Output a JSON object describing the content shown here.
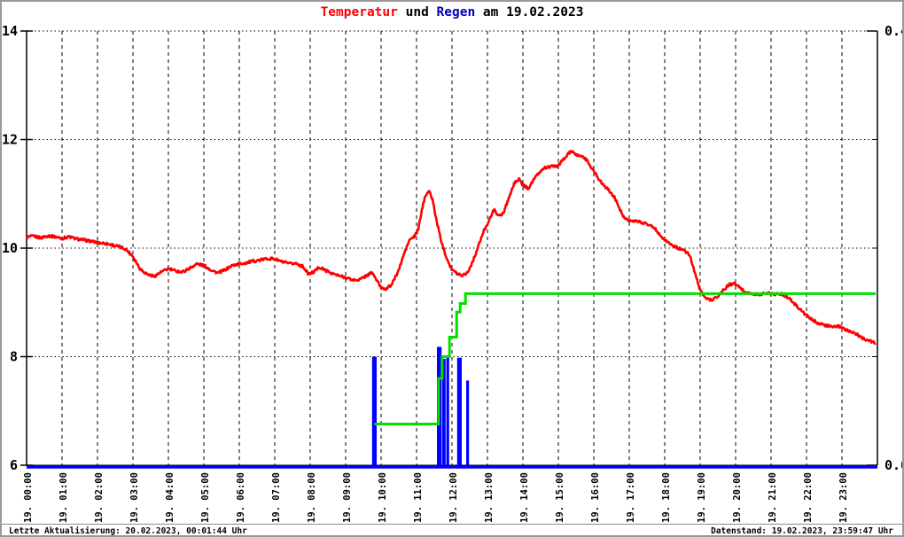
{
  "title": {
    "temperature_label": "Temperatur",
    "conjunction": " und ",
    "rain_label": "Regen",
    "date_suffix": " am 19.02.2023"
  },
  "footer": {
    "last_update": "Letzte Aktualisierung: 20.02.2023, 00:01:44 Uhr",
    "data_state": "Datenstand: 19.02.2023, 23:59:47 Uhr"
  },
  "colors": {
    "temperature_line": "#ff0000",
    "rain_bars": "#0000ff",
    "rain_cumulative_line": "#00e000",
    "axis": "#000000",
    "grid": "#000000",
    "title_temperature": "#ff0000",
    "title_rain": "#0000bb",
    "baseline_blue": "#0000ff"
  },
  "chart_data": {
    "type": "line+bar",
    "title": "Temperatur und Regen am 19.02.2023",
    "grid": true,
    "x_axis": {
      "range": [
        0,
        24
      ],
      "tick_labels": [
        "19. 00:00",
        "19. 01:00",
        "19. 02:00",
        "19. 03:00",
        "19. 04:00",
        "19. 05:00",
        "19. 06:00",
        "19. 07:00",
        "19. 08:00",
        "19. 09:00",
        "19. 10:00",
        "19. 11:00",
        "19. 12:00",
        "19. 13:00",
        "19. 14:00",
        "19. 15:00",
        "19. 16:00",
        "19. 17:00",
        "19. 18:00",
        "19. 19:00",
        "19. 20:00",
        "19. 21:00",
        "19. 22:00",
        "19. 23:00"
      ]
    },
    "y_left_axis": {
      "range": [
        6,
        14
      ],
      "tick_values": [
        14,
        12,
        10,
        8,
        6
      ],
      "tick_labels": [
        "14",
        "12",
        "10",
        "8",
        "6"
      ],
      "series": "Temperatur (rot)"
    },
    "y_right_axis": {
      "range": [
        0.0,
        0.4
      ],
      "labeled_tick_values": [
        0.4,
        0.0
      ],
      "labeled_tick_labels": [
        "0.4",
        "0.0"
      ],
      "minor_tick_values": [
        0.3,
        0.2,
        0.1
      ],
      "series": "Regen (blau/gruen)"
    },
    "temperature_series": {
      "name": "Temperatur",
      "axis": "left",
      "points": [
        [
          0.0,
          10.2
        ],
        [
          0.2,
          10.22
        ],
        [
          0.4,
          10.19
        ],
        [
          0.6,
          10.23
        ],
        [
          0.8,
          10.21
        ],
        [
          1.0,
          10.18
        ],
        [
          1.2,
          10.21
        ],
        [
          1.4,
          10.17
        ],
        [
          1.6,
          10.15
        ],
        [
          1.8,
          10.13
        ],
        [
          2.0,
          10.1
        ],
        [
          2.2,
          10.09
        ],
        [
          2.4,
          10.06
        ],
        [
          2.6,
          10.03
        ],
        [
          2.8,
          9.98
        ],
        [
          3.0,
          9.85
        ],
        [
          3.2,
          9.62
        ],
        [
          3.4,
          9.52
        ],
        [
          3.6,
          9.48
        ],
        [
          3.8,
          9.56
        ],
        [
          4.0,
          9.62
        ],
        [
          4.2,
          9.58
        ],
        [
          4.4,
          9.56
        ],
        [
          4.6,
          9.63
        ],
        [
          4.8,
          9.71
        ],
        [
          5.0,
          9.68
        ],
        [
          5.2,
          9.6
        ],
        [
          5.4,
          9.54
        ],
        [
          5.6,
          9.6
        ],
        [
          5.8,
          9.68
        ],
        [
          6.0,
          9.71
        ],
        [
          6.2,
          9.73
        ],
        [
          6.4,
          9.76
        ],
        [
          6.6,
          9.78
        ],
        [
          6.8,
          9.81
        ],
        [
          7.0,
          9.8
        ],
        [
          7.2,
          9.75
        ],
        [
          7.4,
          9.71
        ],
        [
          7.6,
          9.72
        ],
        [
          7.8,
          9.66
        ],
        [
          7.95,
          9.52
        ],
        [
          8.1,
          9.56
        ],
        [
          8.25,
          9.65
        ],
        [
          8.4,
          9.6
        ],
        [
          8.6,
          9.54
        ],
        [
          8.8,
          9.49
        ],
        [
          9.0,
          9.46
        ],
        [
          9.2,
          9.41
        ],
        [
          9.4,
          9.42
        ],
        [
          9.6,
          9.5
        ],
        [
          9.75,
          9.55
        ],
        [
          9.9,
          9.38
        ],
        [
          10.0,
          9.27
        ],
        [
          10.15,
          9.25
        ],
        [
          10.3,
          9.33
        ],
        [
          10.5,
          9.6
        ],
        [
          10.65,
          9.9
        ],
        [
          10.8,
          10.15
        ],
        [
          10.95,
          10.22
        ],
        [
          11.05,
          10.35
        ],
        [
          11.15,
          10.7
        ],
        [
          11.25,
          10.98
        ],
        [
          11.35,
          11.05
        ],
        [
          11.45,
          10.9
        ],
        [
          11.55,
          10.55
        ],
        [
          11.7,
          10.12
        ],
        [
          11.85,
          9.82
        ],
        [
          12.0,
          9.6
        ],
        [
          12.15,
          9.53
        ],
        [
          12.3,
          9.5
        ],
        [
          12.45,
          9.56
        ],
        [
          12.6,
          9.78
        ],
        [
          12.75,
          10.05
        ],
        [
          12.9,
          10.32
        ],
        [
          13.05,
          10.52
        ],
        [
          13.2,
          10.73
        ],
        [
          13.3,
          10.58
        ],
        [
          13.45,
          10.65
        ],
        [
          13.6,
          10.92
        ],
        [
          13.75,
          11.18
        ],
        [
          13.87,
          11.28
        ],
        [
          14.0,
          11.16
        ],
        [
          14.15,
          11.1
        ],
        [
          14.3,
          11.26
        ],
        [
          14.45,
          11.38
        ],
        [
          14.6,
          11.48
        ],
        [
          14.8,
          11.5
        ],
        [
          15.0,
          11.52
        ],
        [
          15.2,
          11.68
        ],
        [
          15.35,
          11.78
        ],
        [
          15.5,
          11.72
        ],
        [
          15.65,
          11.7
        ],
        [
          15.8,
          11.62
        ],
        [
          16.0,
          11.42
        ],
        [
          16.2,
          11.22
        ],
        [
          16.4,
          11.08
        ],
        [
          16.6,
          10.92
        ],
        [
          16.8,
          10.62
        ],
        [
          16.95,
          10.52
        ],
        [
          17.1,
          10.5
        ],
        [
          17.3,
          10.48
        ],
        [
          17.5,
          10.45
        ],
        [
          17.7,
          10.38
        ],
        [
          17.9,
          10.22
        ],
        [
          18.1,
          10.1
        ],
        [
          18.3,
          10.02
        ],
        [
          18.5,
          9.97
        ],
        [
          18.7,
          9.88
        ],
        [
          18.85,
          9.55
        ],
        [
          19.0,
          9.22
        ],
        [
          19.2,
          9.06
        ],
        [
          19.35,
          9.05
        ],
        [
          19.5,
          9.12
        ],
        [
          19.65,
          9.22
        ],
        [
          19.8,
          9.32
        ],
        [
          19.95,
          9.35
        ],
        [
          20.1,
          9.28
        ],
        [
          20.3,
          9.18
        ],
        [
          20.5,
          9.15
        ],
        [
          20.7,
          9.15
        ],
        [
          20.9,
          9.17
        ],
        [
          21.1,
          9.15
        ],
        [
          21.3,
          9.16
        ],
        [
          21.5,
          9.08
        ],
        [
          21.7,
          8.95
        ],
        [
          21.9,
          8.82
        ],
        [
          22.1,
          8.7
        ],
        [
          22.3,
          8.63
        ],
        [
          22.5,
          8.58
        ],
        [
          22.7,
          8.55
        ],
        [
          22.9,
          8.56
        ],
        [
          23.1,
          8.5
        ],
        [
          23.35,
          8.44
        ],
        [
          23.55,
          8.35
        ],
        [
          23.75,
          8.3
        ],
        [
          23.95,
          8.25
        ]
      ]
    },
    "rain_bars": {
      "name": "Regen",
      "axis": "right",
      "bars": [
        {
          "t": 9.81,
          "w": 0.13,
          "v": 0.1
        },
        {
          "t": 11.64,
          "w": 0.13,
          "v": 0.109
        },
        {
          "t": 11.77,
          "w": 0.1,
          "v": 0.098
        },
        {
          "t": 11.88,
          "w": 0.08,
          "v": 0.1
        },
        {
          "t": 12.21,
          "w": 0.13,
          "v": 0.099
        },
        {
          "t": 12.44,
          "w": 0.08,
          "v": 0.078
        }
      ]
    },
    "rain_cumulative_series": {
      "axis": "right",
      "steps": [
        [
          9.81,
          0.038
        ],
        [
          11.62,
          0.038
        ],
        [
          11.62,
          0.08
        ],
        [
          11.72,
          0.08
        ],
        [
          11.72,
          0.1
        ],
        [
          11.93,
          0.1
        ],
        [
          11.93,
          0.118
        ],
        [
          12.13,
          0.118
        ],
        [
          12.13,
          0.141
        ],
        [
          12.23,
          0.141
        ],
        [
          12.23,
          0.149
        ],
        [
          12.38,
          0.149
        ],
        [
          12.38,
          0.158
        ],
        [
          23.95,
          0.158
        ]
      ]
    }
  }
}
